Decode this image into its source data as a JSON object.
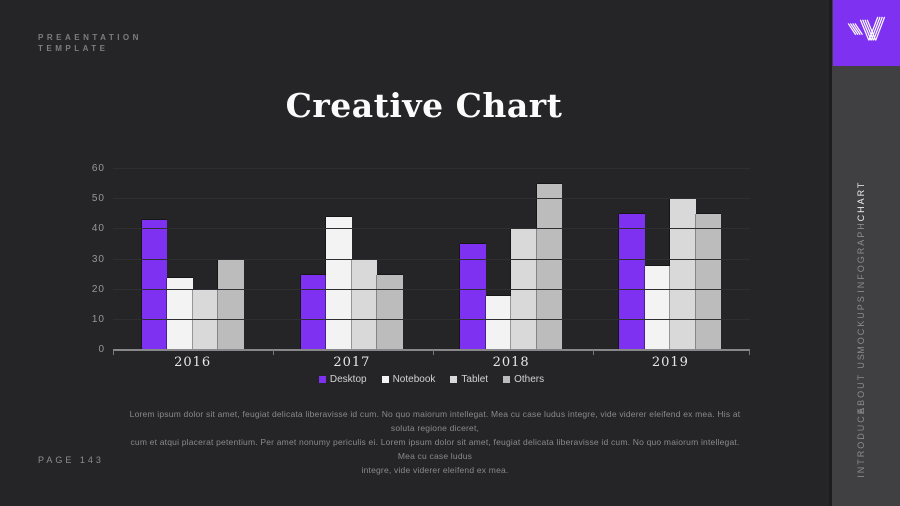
{
  "meta": {
    "template_label_line1": "PREAENTATION",
    "template_label_line2": "TEMPLATE",
    "page_label": "PAGE 143"
  },
  "header": {
    "title": "Creative Chart"
  },
  "sidebar": {
    "items": [
      {
        "label": "CHART",
        "active": true
      },
      {
        "label": "INFOGRAPH",
        "active": false
      },
      {
        "label": "MOCKUPS",
        "active": false
      },
      {
        "label": "ABOUT US",
        "active": false
      },
      {
        "label": "INTRODUCE",
        "active": false
      }
    ]
  },
  "logo": {
    "icon": "striped-w-logo"
  },
  "colors": {
    "background": "#252528",
    "sidebar": "#404043",
    "accent": "#7e31f0",
    "title_text": "#fbfbfc",
    "muted_text": "#89898e"
  },
  "chart_data": {
    "type": "bar",
    "title": "Creative Chart",
    "categories": [
      "2016",
      "2017",
      "2018",
      "2019"
    ],
    "series": [
      {
        "name": "Desktop",
        "color": "#7e31f0",
        "values": [
          43,
          25,
          35,
          45
        ]
      },
      {
        "name": "Notebook",
        "color": "#f3f3f4",
        "values": [
          24,
          44,
          18,
          28
        ]
      },
      {
        "name": "Tablet",
        "color": "#d9d9da",
        "values": [
          20,
          30,
          40,
          50
        ]
      },
      {
        "name": "Others",
        "color": "#bcbcbc",
        "values": [
          30,
          25,
          55,
          45
        ]
      }
    ],
    "xlabel": "",
    "ylabel": "",
    "ylim": [
      0,
      60
    ],
    "yticks": [
      0,
      10,
      20,
      30,
      40,
      50,
      60
    ],
    "grid": true,
    "legend_position": "bottom"
  },
  "body_text": {
    "lines": [
      "Lorem ipsum dolor sit amet, feugiat delicata liberavisse id cum. No quo maiorum intellegat. Mea cu case ludus integre, vide viderer eleifend ex mea. His at soluta regione diceret,",
      "cum et atqui placerat petentium. Per amet nonumy periculis ei. Lorem ipsum dolor sit amet, feugiat delicata liberavisse id cum. No quo maiorum intellegat. Mea cu case ludus",
      "integre, vide viderer eleifend ex mea."
    ]
  }
}
